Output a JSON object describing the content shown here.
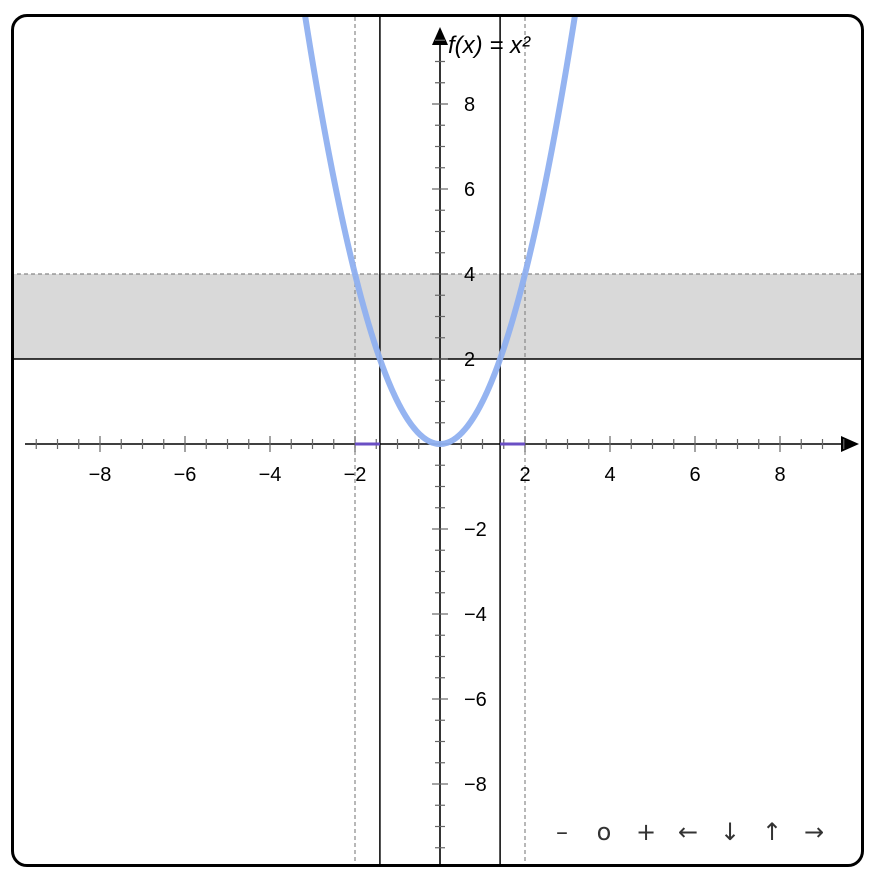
{
  "chart_data": {
    "type": "line",
    "title": "f(x) = x²",
    "function": "x^2",
    "xlim": [
      -10,
      10
    ],
    "ylim": [
      -10,
      10
    ],
    "x_ticks": [
      -8,
      -6,
      -4,
      -2,
      2,
      4,
      6,
      8
    ],
    "y_ticks": [
      -8,
      -6,
      -4,
      -2,
      2,
      4,
      6,
      8
    ],
    "x_tick_labels": [
      "−8",
      "−6",
      "−4",
      "−2",
      "2",
      "4",
      "6",
      "8"
    ],
    "y_tick_labels": [
      "−8",
      "−6",
      "−4",
      "−2",
      "2",
      "4",
      "6",
      "8"
    ],
    "minor_tick_step": 0.5,
    "curve_color": "#8fb0f0",
    "y_interval": [
      2,
      4
    ],
    "y_band_color": "#d9d9d9",
    "solid_vertical_lines_x": [
      -1.414,
      1.414
    ],
    "dashed_vertical_lines_x": [
      -2,
      2
    ],
    "solid_horizontal_line_y": 2,
    "dashed_horizontal_line_y": 4,
    "preimage_intervals": [
      [
        -2,
        -1.414
      ],
      [
        1.414,
        2
      ]
    ],
    "preimage_color": "#6a4fc4",
    "grid": false
  },
  "nav": {
    "zoom_out": "–",
    "reset": "o",
    "zoom_in": "+",
    "left": "←",
    "down": "↓",
    "up": "↑",
    "right": "→"
  }
}
